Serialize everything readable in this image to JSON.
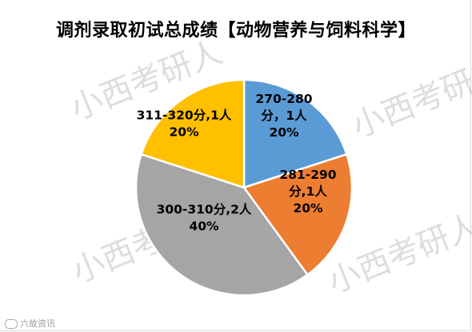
{
  "chart_data": {
    "type": "pie",
    "title": "调剂录取初试总成绩【动物营养与饲料科学】",
    "categories": [
      "270-280分",
      "281-290分",
      "300-310分",
      "311-320分"
    ],
    "values": [
      1,
      1,
      2,
      1
    ],
    "percentages": [
      "20%",
      "20%",
      "40%",
      "20%"
    ],
    "data_labels": [
      [
        "270-280",
        "分，1人",
        "20%"
      ],
      [
        "281-290",
        "分,1人",
        "20%"
      ],
      [
        "300-310分,2人",
        "40%"
      ],
      [
        "311-320分,1人",
        "20%"
      ]
    ],
    "colors": [
      "#5b9bd5",
      "#ed7d31",
      "#a5a5a5",
      "#ffc000"
    ],
    "start_angle_deg": 0,
    "direction": "clockwise",
    "legend": "none"
  },
  "watermark": {
    "text": "小西考研人"
  },
  "source_logo": {
    "text": "六故资讯"
  }
}
